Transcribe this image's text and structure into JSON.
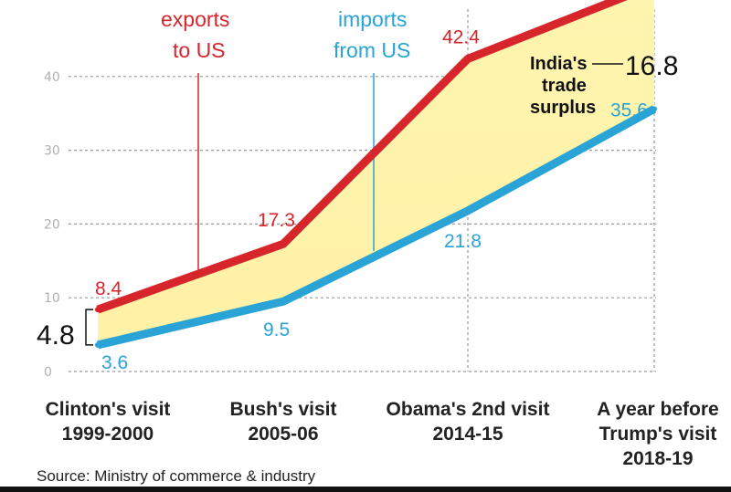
{
  "chart_data": {
    "type": "area",
    "categories": [
      [
        "Clinton's visit",
        "1999-2000"
      ],
      [
        "Bush's visit",
        "2005-06"
      ],
      [
        "Obama's 2nd visit",
        "2014-15"
      ],
      [
        "A year before",
        "Trump's visit",
        "2018-19"
      ]
    ],
    "series": [
      {
        "key": "exports",
        "values": [
          8.4,
          17.3,
          42.4,
          52.4
        ],
        "value_labels": [
          "8.4",
          "17.3",
          "42.4",
          ""
        ],
        "color": "#d7262b"
      },
      {
        "key": "imports",
        "values": [
          3.6,
          9.5,
          21.8,
          35.6
        ],
        "value_labels": [
          "3.6",
          "9.5",
          "21.8",
          "35.6"
        ],
        "color": "#2aa3d6"
      }
    ],
    "fill_color": "#fff1a6",
    "y_ticks": [
      "0",
      "10",
      "20",
      "30",
      "40"
    ],
    "ylim": [
      0,
      50
    ],
    "grid": "dashed horizontal",
    "annotations": {
      "exports": [
        "exports",
        "to US"
      ],
      "imports": [
        "imports",
        "from US"
      ],
      "surplus_label": [
        "India's",
        "trade",
        "surplus"
      ],
      "surplus_start": "4.8",
      "surplus_end": "16.8"
    },
    "source": "Source: Ministry of commerce & industry"
  }
}
